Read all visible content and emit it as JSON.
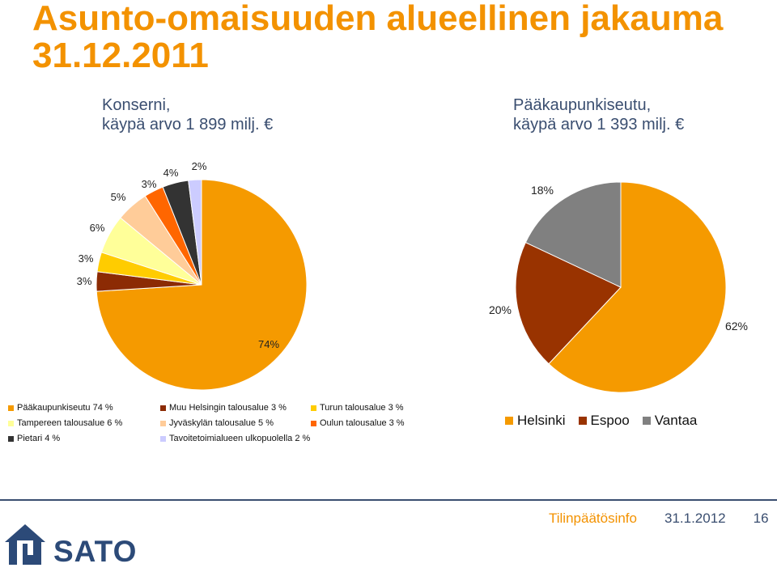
{
  "slide": {
    "title": "Asunto-omaisuuden alueellinen jakauma 31.12.2011",
    "subtitle_left": "Konserni,\nkäypä arvo 1 899 milj. €",
    "subtitle_right": "Pääkaupunkiseutu,\nkäypä arvo 1 393 milj. €"
  },
  "chart_data": [
    {
      "type": "pie",
      "categories": [
        "Pääkaupunkiseutu 74 %",
        "Muu Helsingin talousalue 3 %",
        "Turun talousalue 3 %",
        "Tampereen talousalue 6 %",
        "Jyväskylän talousalue 5 %",
        "Oulun talousalue 3 %",
        "Pietari 4 %",
        "Tavoitetoimialueen ulkopuolella 2 %"
      ],
      "values": [
        74,
        3,
        3,
        6,
        5,
        3,
        4,
        2
      ],
      "data_labels": [
        "74%",
        "3%",
        "3%",
        "6%",
        "5%",
        "3%",
        "4%",
        "2%"
      ],
      "colors": [
        "#F59A00",
        "#8C2B04",
        "#FFCC00",
        "#FFFF99",
        "#FFCC99",
        "#FF6600",
        "#333333",
        "#CCCCFF"
      ],
      "legend": "bottom"
    },
    {
      "type": "pie",
      "categories": [
        "Helsinki",
        "Espoo",
        "Vantaa"
      ],
      "values": [
        62,
        20,
        18
      ],
      "data_labels": [
        "62%",
        "20%",
        "18%"
      ],
      "colors": [
        "#F59A00",
        "#993300",
        "#808080"
      ],
      "legend": "bottom"
    }
  ],
  "footer": {
    "brand": "Tilinpäätösinfo",
    "date": "31.1.2012",
    "page": "16"
  },
  "logo": {
    "text": "SATO",
    "icon": "house-logo-icon"
  }
}
